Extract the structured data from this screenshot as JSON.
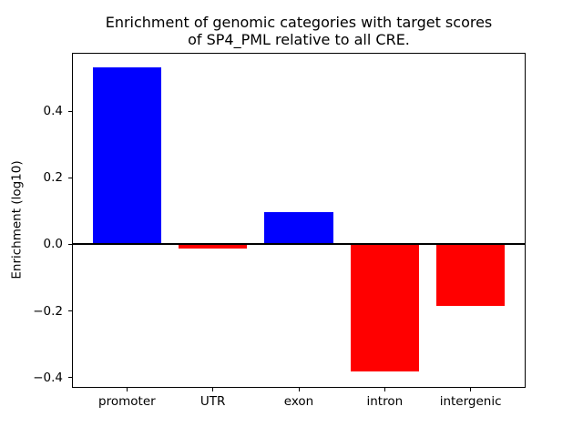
{
  "figure": {
    "title_line1": "Enrichment of genomic categories with target scores",
    "title_line2": "of SP4_PML relative to all CRE.",
    "ylabel": "Enrichment (log10)"
  },
  "chart_data": {
    "type": "bar",
    "title": "Enrichment of genomic categories with target scores\nof SP4_PML relative to all CRE.",
    "xlabel": "",
    "ylabel": "Enrichment (log10)",
    "categories": [
      "promoter",
      "UTR",
      "exon",
      "intron",
      "intergenic"
    ],
    "values": [
      0.532,
      -0.013,
      0.096,
      -0.383,
      -0.186
    ],
    "bar_colors": [
      "#0000ff",
      "#ff0000",
      "#0000ff",
      "#ff0000",
      "#ff0000"
    ],
    "positive_color": "#0000ff",
    "negative_color": "#ff0000",
    "bar_width": 0.8,
    "xlim": [
      -0.64,
      4.64
    ],
    "ylim": [
      -0.431,
      0.576
    ],
    "yticks": [
      -0.4,
      -0.2,
      0.0,
      0.2,
      0.4
    ],
    "ytick_labels": [
      "−0.4",
      "−0.2",
      "0.0",
      "0.2",
      "0.4"
    ],
    "grid": false,
    "legend_position": "none",
    "zero_line": true,
    "zero_line_color": "#000000",
    "background": "#ffffff"
  }
}
